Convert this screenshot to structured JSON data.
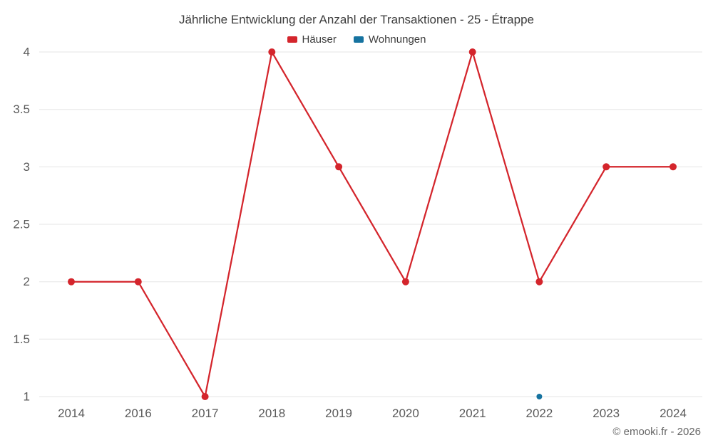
{
  "title": "Jährliche Entwicklung der Anzahl der Transaktionen - 25 - Étrappe",
  "copyright": "© emooki.fr - 2026",
  "legend": [
    {
      "label": "Häuser",
      "color": "#d4252c"
    },
    {
      "label": "Wohnungen",
      "color": "#1673a0"
    }
  ],
  "colors": {
    "grid": "#e6e6e6",
    "axis_label": "#5a5a5a",
    "title_text": "#3c3c3c",
    "background": "#ffffff"
  },
  "chart_data": {
    "type": "line",
    "title": "Jährliche Entwicklung der Anzahl der Transaktionen - 25 - Étrappe",
    "categories": [
      "2014",
      "2016",
      "2017",
      "2018",
      "2019",
      "2020",
      "2021",
      "2022",
      "2023",
      "2024"
    ],
    "series": [
      {
        "name": "Häuser",
        "color": "#d4252c",
        "marker_radius": 5,
        "values": [
          2,
          2,
          1,
          4,
          3,
          2,
          4,
          2,
          3,
          3
        ]
      },
      {
        "name": "Wohnungen",
        "color": "#1673a0",
        "marker_radius": 4,
        "values": [
          null,
          null,
          null,
          null,
          null,
          null,
          null,
          1,
          null,
          null
        ]
      }
    ],
    "xlabel": "",
    "ylabel": "",
    "ylim": [
      1,
      4
    ],
    "yticks": [
      1,
      1.5,
      2,
      2.5,
      3,
      3.5,
      4
    ],
    "grid": "horizontal",
    "legend_position": "top"
  }
}
